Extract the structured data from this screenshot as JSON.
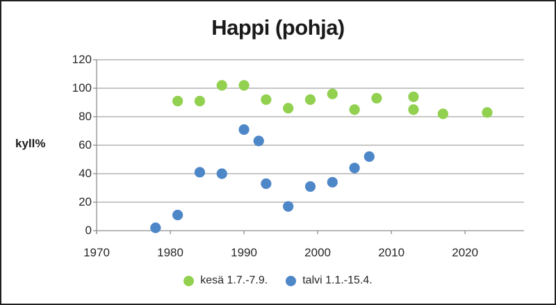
{
  "chart_data": {
    "type": "scatter",
    "title": "Happi (pohja)",
    "xlabel": "",
    "ylabel": "kyll%",
    "xlim": [
      1970,
      2028
    ],
    "ylim": [
      0,
      120
    ],
    "x_ticks": [
      1970,
      1980,
      1990,
      2000,
      2010,
      2020
    ],
    "y_ticks": [
      0,
      20,
      40,
      60,
      80,
      100,
      120
    ],
    "grid": true,
    "legend_position": "bottom",
    "marker": "circle",
    "axis_color": "#8c8c8c",
    "text_color": "#262626",
    "series": [
      {
        "name": "kesä 1.7.-7.9.",
        "color": "#92d050",
        "points": [
          [
            1981,
            91
          ],
          [
            1984,
            91
          ],
          [
            1987,
            102
          ],
          [
            1990,
            102
          ],
          [
            1993,
            92
          ],
          [
            1996,
            86
          ],
          [
            1999,
            92
          ],
          [
            2002,
            96
          ],
          [
            2005,
            85
          ],
          [
            2008,
            93
          ],
          [
            2013,
            94
          ],
          [
            2013,
            85
          ],
          [
            2017,
            82
          ],
          [
            2023,
            83
          ]
        ]
      },
      {
        "name": "talvi 1.1.-15.4.",
        "color": "#4e87c8",
        "points": [
          [
            1978,
            2
          ],
          [
            1981,
            11
          ],
          [
            1984,
            41
          ],
          [
            1987,
            40
          ],
          [
            1990,
            71
          ],
          [
            1992,
            63
          ],
          [
            1993,
            33
          ],
          [
            1996,
            17
          ],
          [
            1999,
            31
          ],
          [
            2002,
            34
          ],
          [
            2005,
            44
          ],
          [
            2007,
            52
          ]
        ]
      }
    ]
  }
}
